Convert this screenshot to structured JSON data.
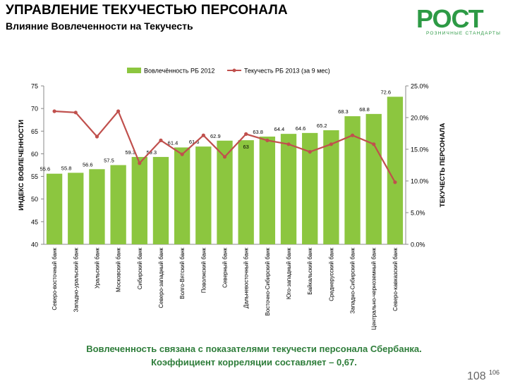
{
  "header": {
    "title": "УПРАВЛЕНИЕ ТЕКУЧЕСТЬЮ ПЕРСОНАЛА",
    "subtitle": "Влияние Вовлеченности на Текучесть"
  },
  "logo": {
    "word": "РОСТ",
    "tagline": "РОЗНИЧНЫЕ СТАНДАРТЫ"
  },
  "footer": {
    "line1": "Вовлеченность связана с показателями текучести персонала Сбербанка.",
    "line2": "Коэффициент корреляции составляет – 0,67."
  },
  "page_number": "106",
  "ghost_number": "108",
  "colors": {
    "bar": "#8cc63f",
    "line": "#c0504d",
    "text_green": "#2e7d3a"
  },
  "chart_data": {
    "type": "bar",
    "categories": [
      "Северо-восточный банк",
      "Западно-уральский банк",
      "Уральский банк",
      "Московский банк",
      "Сибирский банк",
      "Северо-западный банк",
      "Волго-Вятский банк",
      "Поволжский банк",
      "Северный банк",
      "Дальневосточный банк",
      "Восточно-Сибирский банк",
      "Юго-западный банк",
      "Байкальский банк",
      "Среднерусский банк",
      "Западно-Сибирский банк",
      "Центрально-черноземный банк",
      "Северо-кавказский банк"
    ],
    "series": [
      {
        "name": "Вовлечённость РБ 2012",
        "axis": "left",
        "kind": "bar",
        "values": [
          55.6,
          55.8,
          56.6,
          57.5,
          59.3,
          59.3,
          61.4,
          61.6,
          62.9,
          63.0,
          63.8,
          64.4,
          64.6,
          65.2,
          68.3,
          68.8,
          72.6
        ],
        "labels": [
          "55.6",
          "55.8",
          "56.6",
          "57.5",
          "59.3",
          "59.3",
          "61.4",
          "61.6",
          "62.9",
          "63",
          "63.8",
          "64.4",
          "64.6",
          "65.2",
          "68.3",
          "68.8",
          "72.6"
        ]
      },
      {
        "name": "Текучесть РБ 2013 (за 9 мес)",
        "axis": "right",
        "kind": "line",
        "values": [
          21.0,
          20.8,
          17.0,
          21.0,
          12.8,
          16.4,
          14.2,
          17.2,
          13.8,
          17.4,
          16.4,
          15.8,
          14.6,
          15.8,
          17.2,
          15.8,
          9.8
        ]
      }
    ],
    "ylabel": "ИНДЕКС ВОВЛЕЧЕННОСТИ",
    "y2label": "ТЕКУЧЕСТЬ ПЕРСОНАЛА",
    "ylim": [
      40,
      75
    ],
    "y_ticks": [
      "40",
      "45",
      "50",
      "55",
      "60",
      "65",
      "70",
      "75"
    ],
    "y2lim": [
      0,
      25
    ],
    "y2_ticks": [
      "0.0%",
      "5.0%",
      "10.0%",
      "15.0%",
      "20.0%",
      "25.0%"
    ],
    "legend": "top-center",
    "grid": false
  }
}
